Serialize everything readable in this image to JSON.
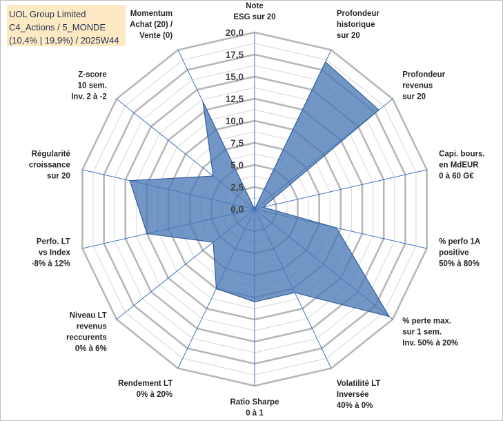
{
  "title": {
    "line1": "UOL Group Limited",
    "line2": "C4_Actions / 5_MONDE",
    "line3": "(10,4% | 19,9%) / 2025W44"
  },
  "chart_data": {
    "type": "radar",
    "rmin": 0,
    "rmax": 20,
    "ticks": [
      "0,0",
      "2,5",
      "5,0",
      "7,5",
      "10,0",
      "12,5",
      "15,0",
      "17,5",
      "20,0"
    ],
    "axes": [
      [
        "Note",
        "ESG sur 20"
      ],
      [
        "Profondeur",
        "historique",
        "sur 20"
      ],
      [
        "Profondeur",
        "revenus",
        "sur 20"
      ],
      [
        "Capi. bours.",
        "en MdEUR",
        "0 à 60 G€"
      ],
      [
        "% perfo 1A",
        "positive",
        "50% à 80%"
      ],
      [
        "% perte max.",
        "sur 1 sem.",
        "Inv. 50% à 20%"
      ],
      [
        "Volatilité LT",
        "Inversée",
        "40% à 0%"
      ],
      [
        "Ratio Sharpe",
        "0 à 1"
      ],
      [
        "Rendement LT",
        "0% à 20%"
      ],
      [
        "Niveau LT",
        "revenus",
        "reccurents",
        "0% à 6%"
      ],
      [
        "Perfo. LT",
        "vs Index",
        "-8% à 12%"
      ],
      [
        "Régularité",
        "croissance",
        "sur 20"
      ],
      [
        "Z-score",
        "10 sem.",
        "Inv. 2 à -2"
      ],
      [
        "Momentum",
        "Achat (20) /",
        "Vente (0)"
      ]
    ],
    "series": [
      {
        "name": "UOL Group Limited",
        "values": [
          0,
          18.5,
          18.0,
          1.0,
          9.5,
          19.5,
          10.5,
          10.5,
          10.0,
          6.0,
          12.5,
          14.5,
          6.0,
          13.5
        ],
        "color": "#4a78b5"
      }
    ]
  }
}
